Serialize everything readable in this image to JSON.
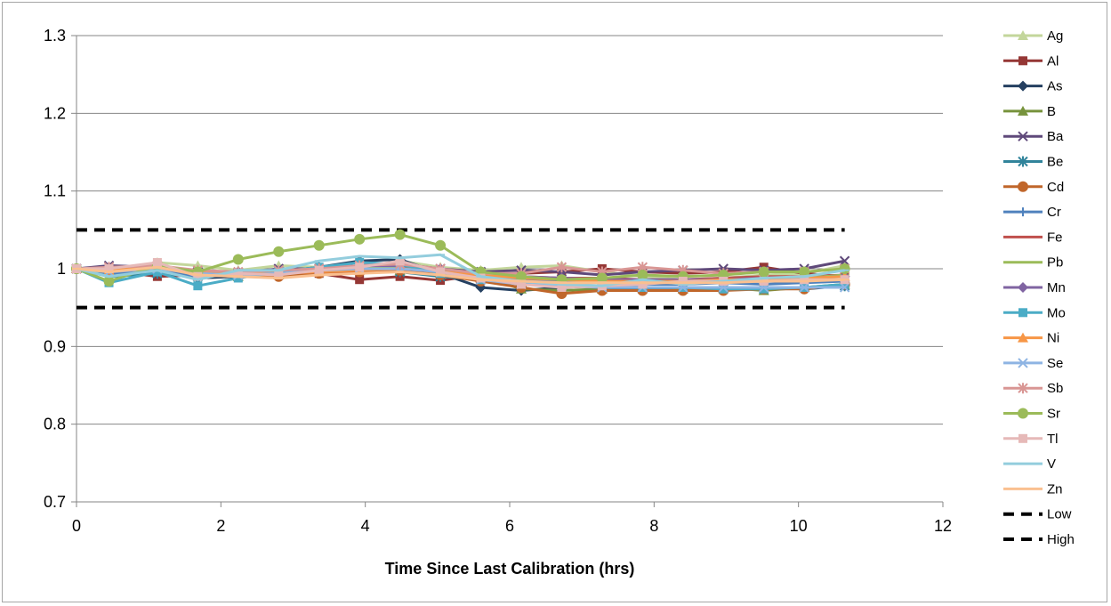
{
  "chart_data": {
    "type": "line",
    "title": "",
    "xlabel": "Time Since Last Calibration (hrs)",
    "ylabel": "",
    "xlim": [
      0,
      12
    ],
    "ylim": [
      0.7,
      1.3
    ],
    "xticks": [
      0,
      2,
      4,
      6,
      8,
      10,
      12
    ],
    "xtick_labels": [
      "0",
      "2",
      "4",
      "6",
      "8",
      "10",
      "12"
    ],
    "yticks": [
      0.7,
      0.8,
      0.9,
      1.0,
      1.1,
      1.2,
      1.3
    ],
    "ytick_labels": [
      "0.7",
      "0.8",
      "0.9",
      "1",
      "1.1",
      "1.2",
      "1.3"
    ],
    "grid": "horizontal",
    "legend_position": "right",
    "x": [
      0,
      0.45,
      1.12,
      1.68,
      2.24,
      2.8,
      3.36,
      3.92,
      4.48,
      5.04,
      5.6,
      6.16,
      6.72,
      7.28,
      7.84,
      8.4,
      8.96,
      9.52,
      10.08,
      10.64
    ],
    "series": [
      {
        "name": "Ag",
        "color": "#c3d69b",
        "marker": "triangle",
        "values": [
          1.0,
          0.992,
          1.008,
          1.004,
          0.998,
          1.004,
          1.002,
          1.0,
          1.01,
          1.002,
          0.998,
          1.002,
          1.004,
          0.996,
          0.99,
          0.986,
          0.988,
          0.992,
          0.994,
          1.004
        ]
      },
      {
        "name": "Al",
        "color": "#953735",
        "marker": "square",
        "values": [
          1.0,
          0.998,
          0.99,
          0.992,
          0.994,
          0.996,
          0.994,
          0.986,
          0.99,
          0.985,
          0.992,
          0.994,
          0.996,
          1.0,
          0.996,
          0.994,
          0.996,
          1.002,
          0.994,
          0.99
        ]
      },
      {
        "name": "As",
        "color": "#254061",
        "marker": "diamond",
        "values": [
          1.0,
          0.994,
          0.998,
          0.988,
          0.99,
          0.996,
          1.002,
          1.01,
          1.012,
          0.994,
          0.976,
          0.972,
          0.976,
          0.978,
          0.976,
          0.974,
          0.972,
          0.976,
          0.974,
          0.978
        ]
      },
      {
        "name": "B",
        "color": "#77933c",
        "marker": "triangle",
        "values": [
          1.0,
          0.996,
          1.0,
          0.994,
          0.99,
          0.992,
          0.996,
          1.0,
          0.998,
          0.994,
          0.99,
          0.974,
          0.972,
          0.974,
          0.976,
          0.974,
          0.976,
          0.972,
          0.976,
          0.98
        ]
      },
      {
        "name": "Ba",
        "color": "#5f497a",
        "marker": "x",
        "values": [
          1.0,
          1.004,
          1.002,
          0.996,
          0.994,
          1.0,
          1.0,
          1.004,
          1.006,
          1.0,
          0.996,
          0.998,
          0.996,
          0.992,
          0.996,
          0.998,
          1.0,
          0.998,
          1.0,
          1.01
        ]
      },
      {
        "name": "Be",
        "color": "#31849b",
        "marker": "star",
        "values": [
          1.0,
          0.99,
          0.994,
          0.99,
          0.992,
          0.994,
          0.996,
          0.998,
          0.996,
          0.99,
          0.986,
          0.982,
          0.978,
          0.976,
          0.974,
          0.976,
          0.974,
          0.974,
          0.976,
          0.978
        ]
      },
      {
        "name": "Cd",
        "color": "#c0662a",
        "marker": "circle",
        "values": [
          1.0,
          0.996,
          1.0,
          0.994,
          0.99,
          0.99,
          0.994,
          0.996,
          0.998,
          0.992,
          0.984,
          0.976,
          0.968,
          0.972,
          0.972,
          0.972,
          0.972,
          0.974,
          0.974,
          0.98
        ]
      },
      {
        "name": "Cr",
        "color": "#4f81bd",
        "marker": "plus",
        "values": [
          1.0,
          0.994,
          0.998,
          0.99,
          0.992,
          0.994,
          0.998,
          1.002,
          1.0,
          0.996,
          0.99,
          0.986,
          0.984,
          0.982,
          0.98,
          0.98,
          0.982,
          0.98,
          0.982,
          0.984
        ]
      },
      {
        "name": "Fe",
        "color": "#c0504d",
        "marker": "dash",
        "values": [
          1.0,
          0.998,
          1.0,
          0.996,
          0.994,
          0.994,
          0.996,
          0.998,
          1.0,
          0.996,
          0.992,
          0.99,
          0.988,
          0.988,
          0.986,
          0.986,
          0.988,
          0.99,
          0.99,
          0.992
        ]
      },
      {
        "name": "Pb",
        "color": "#9bbb59",
        "marker": "dash",
        "values": [
          1.0,
          0.996,
          1.002,
          0.996,
          0.994,
          0.996,
          0.998,
          1.0,
          1.002,
          0.998,
          0.994,
          0.99,
          0.986,
          0.984,
          0.982,
          0.984,
          0.984,
          0.986,
          0.988,
          0.992
        ]
      },
      {
        "name": "Mn",
        "color": "#8064a2",
        "marker": "diamond",
        "values": [
          1.0,
          0.998,
          1.002,
          0.996,
          0.996,
          0.996,
          1.0,
          1.004,
          1.004,
          1.0,
          0.994,
          0.99,
          0.988,
          0.986,
          0.986,
          0.986,
          0.986,
          0.988,
          0.988,
          0.99
        ]
      },
      {
        "name": "Mo",
        "color": "#4bacc6",
        "marker": "square",
        "values": [
          1.0,
          0.982,
          0.996,
          0.978,
          0.988,
          0.996,
          1.002,
          1.008,
          1.006,
          0.994,
          0.986,
          0.982,
          0.98,
          0.978,
          0.976,
          0.976,
          0.974,
          0.974,
          0.976,
          0.98
        ]
      },
      {
        "name": "Ni",
        "color": "#f79646",
        "marker": "triangle",
        "values": [
          1.0,
          0.998,
          1.002,
          0.996,
          0.994,
          0.994,
          0.996,
          0.998,
          1.0,
          0.996,
          0.992,
          0.988,
          0.986,
          0.984,
          0.984,
          0.984,
          0.986,
          0.986,
          0.988,
          0.99
        ]
      },
      {
        "name": "Se",
        "color": "#8eb4e3",
        "marker": "x",
        "values": [
          1.0,
          0.996,
          1.0,
          0.994,
          0.992,
          0.994,
          0.998,
          1.0,
          1.0,
          0.996,
          0.986,
          0.98,
          0.978,
          0.976,
          0.976,
          0.976,
          0.976,
          0.976,
          0.976,
          0.976
        ]
      },
      {
        "name": "Sb",
        "color": "#d99694",
        "marker": "star",
        "values": [
          1.0,
          1.002,
          1.004,
          0.998,
          0.996,
          0.998,
          1.0,
          1.004,
          1.006,
          1.0,
          0.994,
          0.994,
          1.002,
          0.996,
          1.002,
          0.998,
          0.994,
          0.996,
          0.996,
          1.0
        ]
      },
      {
        "name": "Sr",
        "color": "#9bbb59",
        "marker": "circle",
        "values": [
          1.0,
          0.984,
          1.004,
          0.996,
          1.012,
          1.022,
          1.03,
          1.038,
          1.044,
          1.03,
          0.996,
          0.99,
          0.986,
          0.988,
          0.992,
          0.99,
          0.992,
          0.996,
          0.996,
          1.0
        ]
      },
      {
        "name": "Tl",
        "color": "#e6b9b8",
        "marker": "square",
        "values": [
          1.0,
          1.0,
          1.008,
          0.99,
          0.994,
          0.992,
          0.998,
          1.002,
          1.01,
          0.996,
          0.988,
          0.98,
          0.976,
          0.978,
          0.98,
          0.984,
          0.984,
          0.984,
          0.986,
          0.986
        ]
      },
      {
        "name": "V",
        "color": "#93cddd",
        "marker": "dash",
        "values": [
          1.0,
          0.99,
          0.998,
          0.986,
          0.998,
          0.998,
          1.01,
          1.016,
          1.014,
          1.018,
          0.99,
          0.984,
          0.98,
          0.978,
          0.986,
          0.98,
          0.984,
          0.988,
          0.99,
          0.998
        ]
      },
      {
        "name": "Zn",
        "color": "#fac090",
        "marker": "dash",
        "values": [
          1.0,
          0.996,
          1.002,
          0.992,
          0.99,
          0.988,
          0.992,
          0.994,
          0.996,
          0.992,
          0.986,
          0.984,
          0.982,
          0.982,
          0.982,
          0.982,
          0.982,
          0.984,
          0.984,
          0.986
        ]
      }
    ],
    "reference_lines": [
      {
        "name": "Low",
        "color": "#000000",
        "style": "dashed",
        "x": [
          0,
          10.64
        ],
        "values": [
          0.95,
          0.95
        ]
      },
      {
        "name": "High",
        "color": "#000000",
        "style": "dashed",
        "x": [
          0,
          10.64
        ],
        "values": [
          1.05,
          1.05
        ]
      }
    ]
  }
}
